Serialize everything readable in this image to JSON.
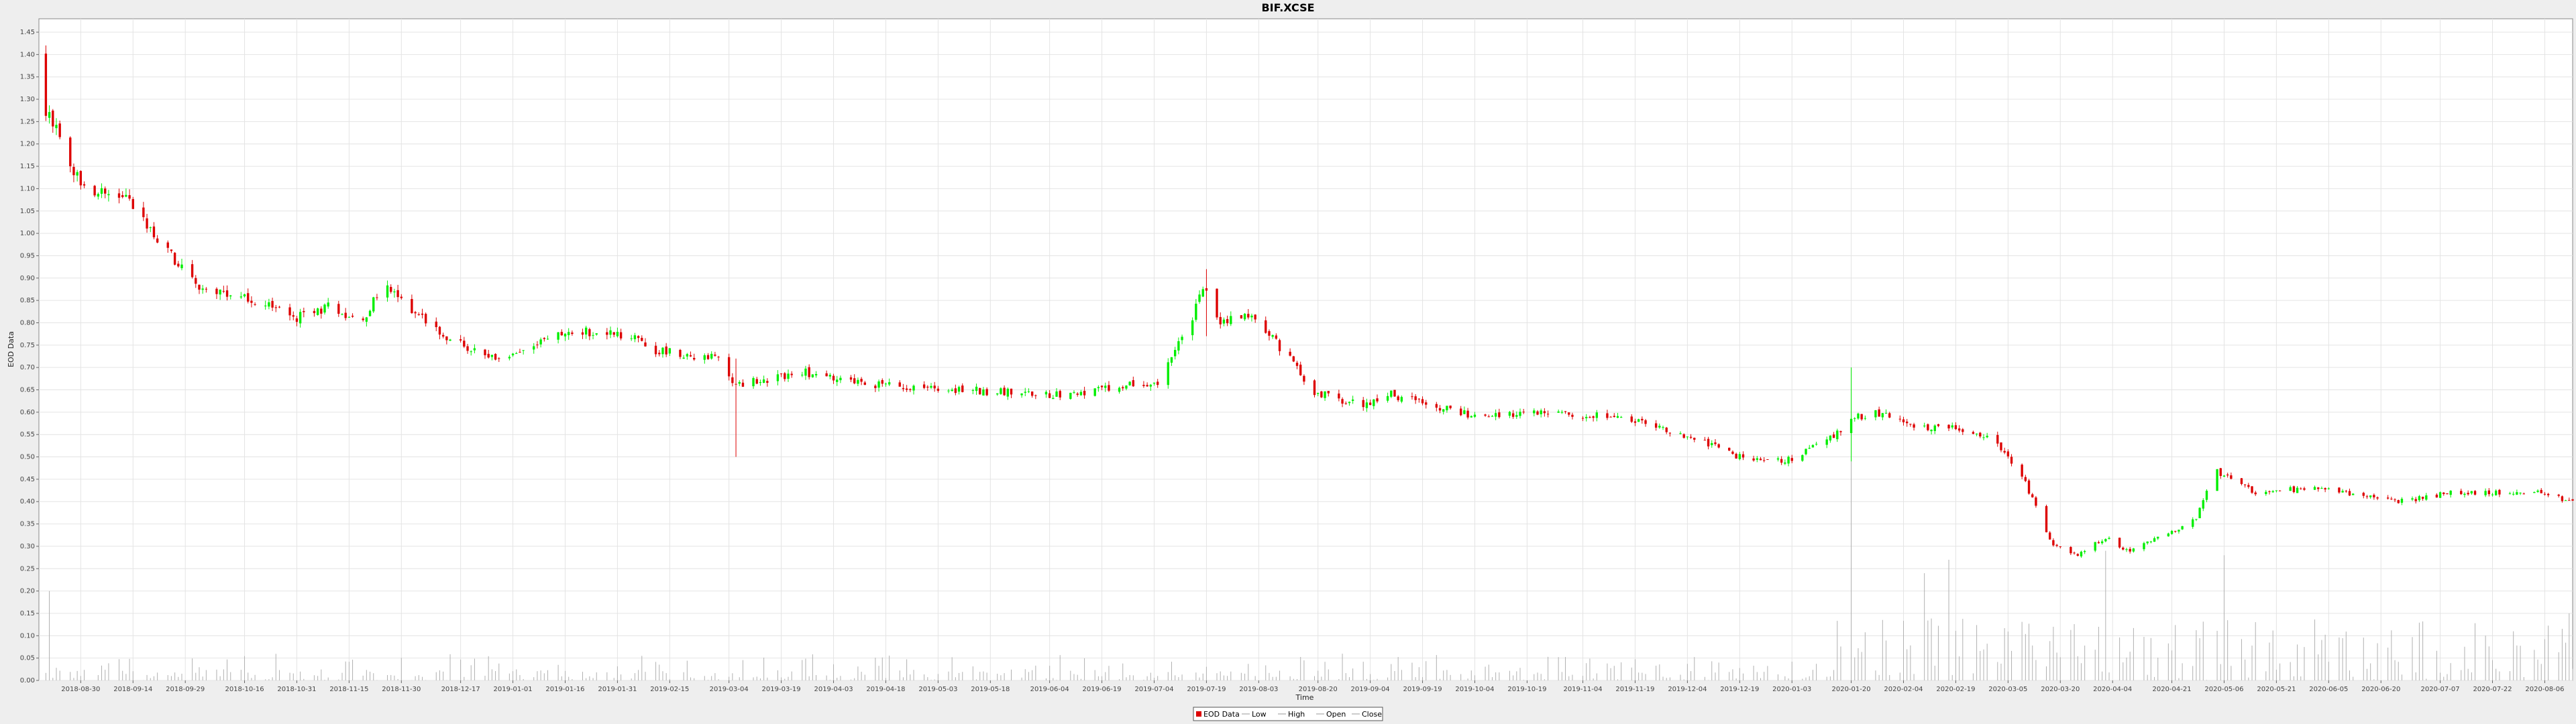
{
  "chart_data": {
    "type": "candlestick",
    "title": "BIF.XCSE",
    "xlabel": "Time",
    "ylabel": "EOD Data",
    "grid": true,
    "legend_position": "bottom-center",
    "legend": [
      "EOD Data",
      "Low",
      "High",
      "Open",
      "Close"
    ],
    "colors": {
      "up": "#00ee00",
      "down": "#dd0000",
      "volume": "#b0b0b0",
      "grid": "#e4e4e4",
      "plot_bg": "#ffffff",
      "page_bg": "#eeeeee"
    },
    "ylim": [
      0.0,
      1.48
    ],
    "yticks": [
      "0.00",
      "0.05",
      "0.10",
      "0.15",
      "0.20",
      "0.25",
      "0.30",
      "0.35",
      "0.40",
      "0.45",
      "0.50",
      "0.55",
      "0.60",
      "0.65",
      "0.70",
      "0.75",
      "0.80",
      "0.85",
      "0.90",
      "0.95",
      "1.00",
      "1.05",
      "1.10",
      "1.15",
      "1.20",
      "1.25",
      "1.30",
      "1.35",
      "1.40",
      "1.45"
    ],
    "xlim": [
      "2018-08-18",
      "2020-08-14"
    ],
    "xticks": [
      "2018-08-30",
      "2018-09-14",
      "2018-09-29",
      "2018-10-16",
      "2018-10-31",
      "2018-11-15",
      "2018-11-30",
      "2018-12-17",
      "2019-01-01",
      "2019-01-16",
      "2019-01-31",
      "2019-02-15",
      "2019-03-04",
      "2019-03-19",
      "2019-04-03",
      "2019-04-18",
      "2019-05-03",
      "2019-05-18",
      "2019-06-04",
      "2019-06-19",
      "2019-07-04",
      "2019-07-19",
      "2019-08-03",
      "2019-08-20",
      "2019-09-04",
      "2019-09-19",
      "2019-10-04",
      "2019-10-19",
      "2019-11-04",
      "2019-11-19",
      "2019-12-04",
      "2019-12-19",
      "2020-01-03",
      "2020-01-20",
      "2020-02-04",
      "2020-02-19",
      "2020-03-05",
      "2020-03-20",
      "2020-04-04",
      "2020-04-21",
      "2020-05-06",
      "2020-05-21",
      "2020-06-05",
      "2020-06-20",
      "2020-07-07",
      "2020-07-22",
      "2020-08-06"
    ],
    "price_anchors": [
      [
        "2018-08-18",
        1.4
      ],
      [
        "2018-08-20",
        1.27
      ],
      [
        "2018-08-24",
        1.22
      ],
      [
        "2018-08-28",
        1.13
      ],
      [
        "2018-09-05",
        1.09
      ],
      [
        "2018-09-12",
        1.08
      ],
      [
        "2018-09-18",
        1.01
      ],
      [
        "2018-09-25",
        0.95
      ],
      [
        "2018-10-01",
        0.89
      ],
      [
        "2018-10-10",
        0.86
      ],
      [
        "2018-10-20",
        0.85
      ],
      [
        "2018-10-31",
        0.81
      ],
      [
        "2018-11-10",
        0.84
      ],
      [
        "2018-11-18",
        0.8
      ],
      [
        "2018-11-25",
        0.88
      ],
      [
        "2018-12-05",
        0.82
      ],
      [
        "2018-12-15",
        0.76
      ],
      [
        "2018-12-25",
        0.72
      ],
      [
        "2019-01-05",
        0.73
      ],
      [
        "2019-01-12",
        0.77
      ],
      [
        "2019-01-20",
        0.78
      ],
      [
        "2019-02-05",
        0.77
      ],
      [
        "2019-02-10",
        0.74
      ],
      [
        "2019-02-20",
        0.73
      ],
      [
        "2019-03-01",
        0.72
      ],
      [
        "2019-03-06",
        0.66
      ],
      [
        "2019-03-12",
        0.67
      ],
      [
        "2019-03-25",
        0.69
      ],
      [
        "2019-04-05",
        0.67
      ],
      [
        "2019-04-20",
        0.66
      ],
      [
        "2019-05-10",
        0.65
      ],
      [
        "2019-06-04",
        0.64
      ],
      [
        "2019-06-20",
        0.65
      ],
      [
        "2019-07-05",
        0.67
      ],
      [
        "2019-07-14",
        0.79
      ],
      [
        "2019-07-18",
        0.88
      ],
      [
        "2019-07-23",
        0.8
      ],
      [
        "2019-08-01",
        0.82
      ],
      [
        "2019-08-12",
        0.72
      ],
      [
        "2019-08-18",
        0.65
      ],
      [
        "2019-08-28",
        0.62
      ],
      [
        "2019-09-04",
        0.62
      ],
      [
        "2019-09-10",
        0.64
      ],
      [
        "2019-09-25",
        0.61
      ],
      [
        "2019-10-05",
        0.59
      ],
      [
        "2019-10-20",
        0.6
      ],
      [
        "2019-11-10",
        0.59
      ],
      [
        "2019-11-25",
        0.57
      ],
      [
        "2019-12-10",
        0.53
      ],
      [
        "2019-12-22",
        0.49
      ],
      [
        "2020-01-01",
        0.49
      ],
      [
        "2020-01-12",
        0.53
      ],
      [
        "2020-01-22",
        0.59
      ],
      [
        "2020-01-27",
        0.6
      ],
      [
        "2020-02-08",
        0.57
      ],
      [
        "2020-02-22",
        0.56
      ],
      [
        "2020-03-02",
        0.53
      ],
      [
        "2020-03-10",
        0.44
      ],
      [
        "2020-03-18",
        0.3
      ],
      [
        "2020-03-25",
        0.28
      ],
      [
        "2020-04-02",
        0.32
      ],
      [
        "2020-04-08",
        0.29
      ],
      [
        "2020-04-18",
        0.32
      ],
      [
        "2020-04-28",
        0.36
      ],
      [
        "2020-05-03",
        0.47
      ],
      [
        "2020-05-08",
        0.45
      ],
      [
        "2020-05-15",
        0.42
      ],
      [
        "2020-05-30",
        0.43
      ],
      [
        "2020-06-10",
        0.42
      ],
      [
        "2020-06-25",
        0.4
      ],
      [
        "2020-07-10",
        0.42
      ],
      [
        "2020-07-25",
        0.42
      ],
      [
        "2020-08-05",
        0.42
      ],
      [
        "2020-08-14",
        0.4
      ]
    ],
    "spikes": [
      {
        "date": "2018-08-18",
        "low": 1.1,
        "high": 1.42
      },
      {
        "date": "2019-03-06",
        "low": 0.5,
        "high": 0.72
      },
      {
        "date": "2019-06-22",
        "low": 0.52,
        "high": 0.66
      },
      {
        "date": "2019-07-19",
        "low": 0.77,
        "high": 0.92
      },
      {
        "date": "2019-10-12",
        "low": 0.5,
        "high": 0.61
      },
      {
        "date": "2020-01-20",
        "low": 0.49,
        "high": 0.7
      },
      {
        "date": "2020-03-22",
        "low": 0.25,
        "high": 0.33
      },
      {
        "date": "2020-04-04",
        "low": 0.26,
        "high": 0.36
      }
    ],
    "volume_spikes": [
      {
        "date": "2018-08-19",
        "value": 0.34
      },
      {
        "date": "2018-08-21",
        "value": 0.2
      },
      {
        "date": "2019-07-14",
        "value": 0.23
      },
      {
        "date": "2020-01-20",
        "value": 0.7
      },
      {
        "date": "2020-02-10",
        "value": 0.24
      },
      {
        "date": "2020-02-17",
        "value": 0.27
      },
      {
        "date": "2020-04-04",
        "value": 0.48
      },
      {
        "date": "2020-04-02",
        "value": 0.29
      },
      {
        "date": "2020-05-06",
        "value": 0.28
      },
      {
        "date": "2020-08-13",
        "value": 0.15
      }
    ]
  }
}
